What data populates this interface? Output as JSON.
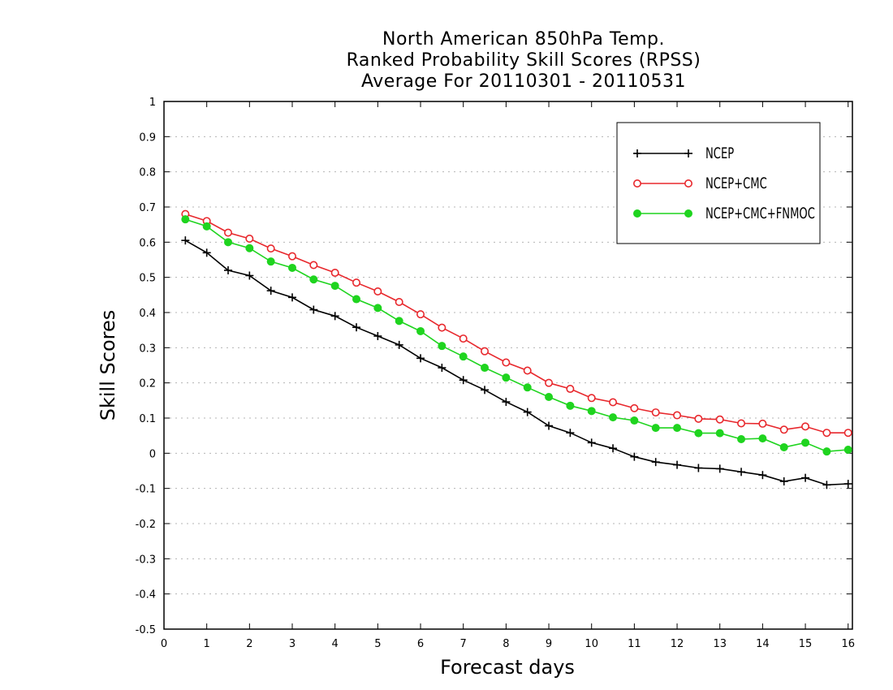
{
  "chart_data": {
    "type": "line",
    "title_lines": [
      "North American 850hPa Temp.",
      "Ranked Probability Skill Scores (RPSS)",
      "Average For 20110301 - 20110531"
    ],
    "xlabel": "Forecast days",
    "ylabel": "Skill Scores",
    "xlim": [
      0,
      16.1
    ],
    "ylim": [
      -0.5,
      1
    ],
    "xticks": [
      0,
      1,
      2,
      3,
      4,
      5,
      6,
      7,
      8,
      9,
      10,
      11,
      12,
      13,
      14,
      15,
      16
    ],
    "xtick_labels": [
      "0",
      "1",
      "2",
      "3",
      "4",
      "5",
      "6",
      "7",
      "8",
      "9",
      "10",
      "11",
      "12",
      "13",
      "14",
      "15",
      "16"
    ],
    "yticks": [
      -0.5,
      -0.4,
      -0.3,
      -0.2,
      -0.1,
      0,
      0.1,
      0.2,
      0.3,
      0.4,
      0.5,
      0.6,
      0.7,
      0.8,
      0.9,
      1
    ],
    "ytick_labels": [
      "-0.5",
      "-0.4",
      "-0.3",
      "-0.2",
      "-0.1",
      "0",
      "0.1",
      "0.2",
      "0.3",
      "0.4",
      "0.5",
      "0.6",
      "0.7",
      "0.8",
      "0.9",
      "1"
    ],
    "grid": "horizontal dotted",
    "legend_position": "top-right",
    "x": [
      0.5,
      1,
      1.5,
      2,
      2.5,
      3,
      3.5,
      4,
      4.5,
      5,
      5.5,
      6,
      6.5,
      7,
      7.5,
      8,
      8.5,
      9,
      9.5,
      10,
      10.5,
      11,
      11.5,
      12,
      12.5,
      13,
      13.5,
      14,
      14.5,
      15,
      15.5,
      16
    ],
    "series": [
      {
        "name": "NCEP",
        "color": "#000000",
        "marker": "plus",
        "values": [
          0.605,
          0.57,
          0.52,
          0.505,
          0.462,
          0.443,
          0.408,
          0.39,
          0.358,
          0.333,
          0.308,
          0.27,
          0.243,
          0.208,
          0.18,
          0.146,
          0.117,
          0.078,
          0.058,
          0.03,
          0.014,
          -0.01,
          -0.025,
          -0.033,
          -0.042,
          -0.044,
          -0.053,
          -0.062,
          -0.08,
          -0.07,
          -0.09,
          -0.087
        ]
      },
      {
        "name": "NCEP+CMC",
        "color": "#e8282d",
        "marker": "open-circle",
        "values": [
          0.68,
          0.66,
          0.627,
          0.61,
          0.582,
          0.56,
          0.535,
          0.513,
          0.485,
          0.46,
          0.43,
          0.395,
          0.357,
          0.326,
          0.29,
          0.258,
          0.235,
          0.2,
          0.183,
          0.157,
          0.145,
          0.128,
          0.116,
          0.108,
          0.098,
          0.096,
          0.085,
          0.084,
          0.067,
          0.076,
          0.058,
          0.058
        ]
      },
      {
        "name": "NCEP+CMC+FNMOC",
        "color": "#1fd41f",
        "marker": "filled-circle",
        "values": [
          0.665,
          0.645,
          0.6,
          0.583,
          0.545,
          0.527,
          0.494,
          0.476,
          0.438,
          0.413,
          0.376,
          0.347,
          0.305,
          0.275,
          0.243,
          0.215,
          0.187,
          0.16,
          0.135,
          0.12,
          0.102,
          0.093,
          0.072,
          0.072,
          0.057,
          0.057,
          0.04,
          0.042,
          0.017,
          0.03,
          0.005,
          0.01
        ]
      }
    ]
  }
}
